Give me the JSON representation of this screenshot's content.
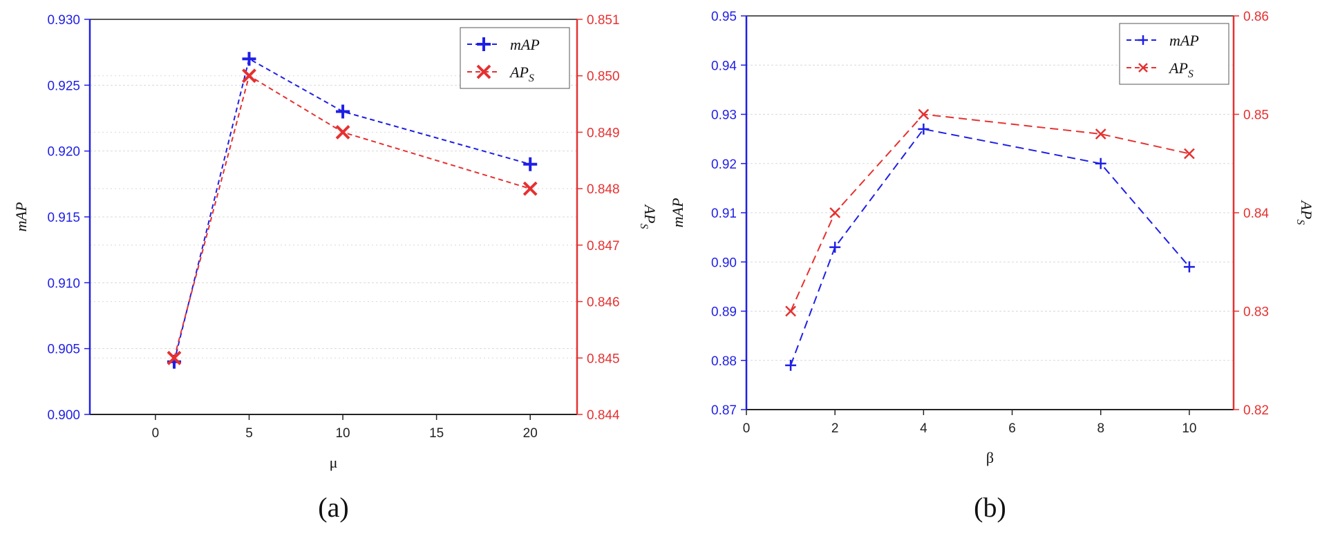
{
  "colors": {
    "left_axis": "#1f1fe6",
    "right_axis": "#e63030",
    "map_series": "#1f1fe6",
    "aps_series": "#e63030",
    "grid": "#d8d8d8",
    "axis": "#222222"
  },
  "chart_data": [
    {
      "type": "line",
      "panel_label": "(a)",
      "xlabel": "μ",
      "ylabel_left": "mAP",
      "ylabel_right": "AP",
      "ylabel_right_sub": "S",
      "xlim": [
        -3.5,
        22.5
      ],
      "xticks": [
        "0",
        "5",
        "10",
        "15",
        "20"
      ],
      "xtick_values": [
        0,
        5,
        10,
        15,
        20
      ],
      "ylim_left": [
        0.9,
        0.93
      ],
      "yticks_left": [
        "0.900",
        "0.905",
        "0.910",
        "0.915",
        "0.920",
        "0.925",
        "0.930"
      ],
      "ylim_right": [
        0.844,
        0.851
      ],
      "yticks_right": [
        "0.844",
        "0.845",
        "0.846",
        "0.847",
        "0.848",
        "0.849",
        "0.850",
        "0.851"
      ],
      "grid": true,
      "legend_position": "top-right",
      "x": [
        1,
        5,
        10,
        20
      ],
      "series": [
        {
          "name": "mAP",
          "axis": "left",
          "marker": "plus",
          "values": [
            0.904,
            0.927,
            0.923,
            0.919
          ]
        },
        {
          "name": "AP",
          "name_sub": "S",
          "axis": "right",
          "marker": "x",
          "values": [
            0.845,
            0.85,
            0.849,
            0.848
          ]
        }
      ]
    },
    {
      "type": "line",
      "panel_label": "(b)",
      "xlabel": "β",
      "ylabel_left": "mAP",
      "ylabel_right": "AP",
      "ylabel_right_sub": "S",
      "xlim": [
        0,
        11
      ],
      "xticks": [
        "0",
        "2",
        "4",
        "6",
        "8",
        "10"
      ],
      "xtick_values": [
        0,
        2,
        4,
        6,
        8,
        10
      ],
      "ylim_left": [
        0.87,
        0.95
      ],
      "yticks_left": [
        "0.87",
        "0.88",
        "0.89",
        "0.90",
        "0.91",
        "0.92",
        "0.93",
        "0.94",
        "0.95"
      ],
      "ylim_right": [
        0.82,
        0.86
      ],
      "yticks_right": [
        "0.82",
        "0.83",
        "0.84",
        "0.85",
        "0.86"
      ],
      "grid": true,
      "legend_position": "top-right",
      "x": [
        1,
        2,
        4,
        8,
        10
      ],
      "series": [
        {
          "name": "mAP",
          "axis": "left",
          "marker": "plus",
          "values": [
            0.879,
            0.903,
            0.927,
            0.92,
            0.899
          ]
        },
        {
          "name": "AP",
          "name_sub": "S",
          "axis": "right",
          "marker": "x",
          "values": [
            0.83,
            0.84,
            0.85,
            0.848,
            0.846
          ]
        }
      ]
    }
  ]
}
